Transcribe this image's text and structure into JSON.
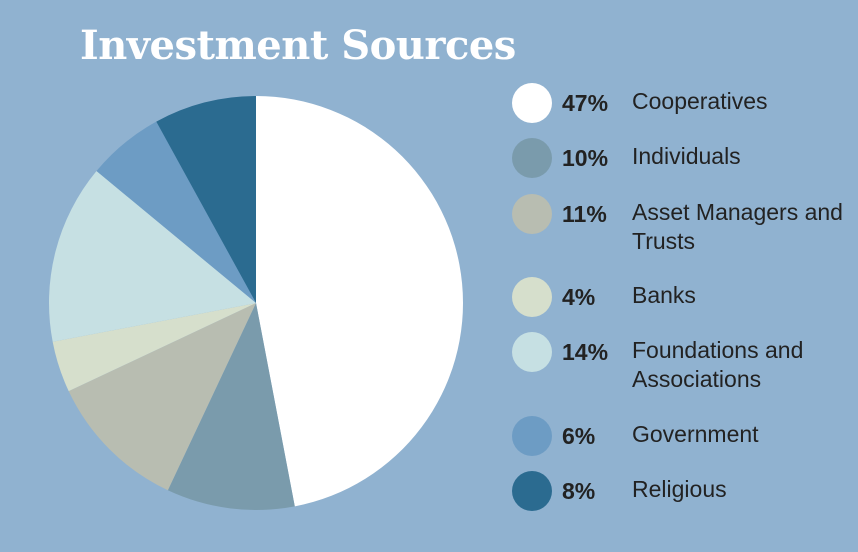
{
  "title": "Investment Sources",
  "chart_data": {
    "type": "pie",
    "title": "Investment Sources",
    "slices": [
      {
        "pct_label": "47%",
        "value": 47,
        "label": "Cooperatives",
        "color": "#ffffff"
      },
      {
        "pct_label": "10%",
        "value": 10,
        "label": "Individuals",
        "color": "#7a9bac"
      },
      {
        "pct_label": "11%",
        "value": 11,
        "label": "Asset Managers and Trusts",
        "color": "#b8bdb1"
      },
      {
        "pct_label": "4%",
        "value": 4,
        "label": "Banks",
        "color": "#d6dfcc"
      },
      {
        "pct_label": "14%",
        "value": 14,
        "label": "Foundations and Associations",
        "color": "#c6e0e3"
      },
      {
        "pct_label": "6%",
        "value": 6,
        "label": "Government",
        "color": "#6d9cc4"
      },
      {
        "pct_label": "8%",
        "value": 8,
        "label": "Religious",
        "color": "#2b6b90"
      }
    ],
    "legend_position": "right"
  }
}
